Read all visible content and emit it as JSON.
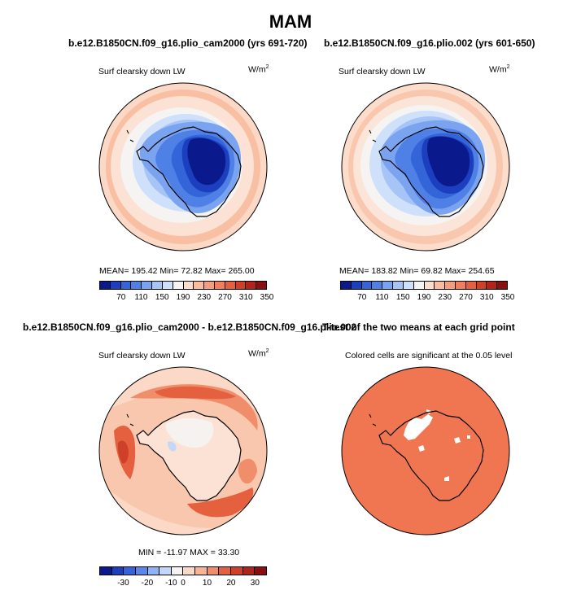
{
  "figure_title": "MAM",
  "panels": [
    {
      "title": "b.e12.B1850CN.f09_g16.plio_cam2000 (yrs 691-720)",
      "left_label": "Surf clearsky down LW",
      "units": "W/m",
      "units_exp": "2",
      "stats": "MEAN=  195.42   Min=   72.82   Max=  265.00",
      "mean": 195.42,
      "min": 72.82,
      "max": 265.0
    },
    {
      "title": "b.e12.B1850CN.f09_g16.plio.002 (yrs 601-650)",
      "left_label": "Surf clearsky down LW",
      "units": "W/m",
      "units_exp": "2",
      "stats": "MEAN=  183.82   Min=   69.82   Max=  254.65",
      "mean": 183.82,
      "min": 69.82,
      "max": 254.65
    },
    {
      "title": "b.e12.B1850CN.f09_g16.plio_cam2000 - b.e12.B1850CN.f09_g16.plio.002",
      "left_label": "Surf clearsky down LW",
      "units": "W/m",
      "units_exp": "2",
      "stats": "MIN = -11.97  MAX =   33.30",
      "min": -11.97,
      "max": 33.3
    },
    {
      "title": "T-test of the two means at each grid point",
      "left_label": "Colored cells are significant at the 0.05 level",
      "significance_level": 0.05
    }
  ],
  "colorbar_abs": {
    "tick_labels": [
      "70",
      "110",
      "150",
      "190",
      "230",
      "270",
      "310",
      "350"
    ],
    "colors": [
      "#0a1a8c",
      "#1c3fc0",
      "#3364d8",
      "#4f80e6",
      "#7aa3f0",
      "#a6c4f6",
      "#cfe0fa",
      "#f6f4f2",
      "#fcdccb",
      "#f9bc9f",
      "#f59e7e",
      "#f07f5d",
      "#e4603f",
      "#cf4029",
      "#b0241a",
      "#8a0f0f"
    ]
  },
  "colorbar_diff": {
    "tick_labels": [
      "-30",
      "-20",
      "-10",
      "0",
      "10",
      "20",
      "30"
    ],
    "colors": [
      "#0a1a8c",
      "#1c3fc0",
      "#3364d8",
      "#5a88e8",
      "#8fb3f3",
      "#c2d8f9",
      "#f6f2ef",
      "#fbd9c6",
      "#f6b596",
      "#f08d6a",
      "#e4603f",
      "#cf4029",
      "#b0241a",
      "#8a0f0f"
    ]
  },
  "colors": {
    "ocean_warm": "#f8cdb5",
    "ttest_fill": "#ef7650",
    "coast": "#000000"
  }
}
